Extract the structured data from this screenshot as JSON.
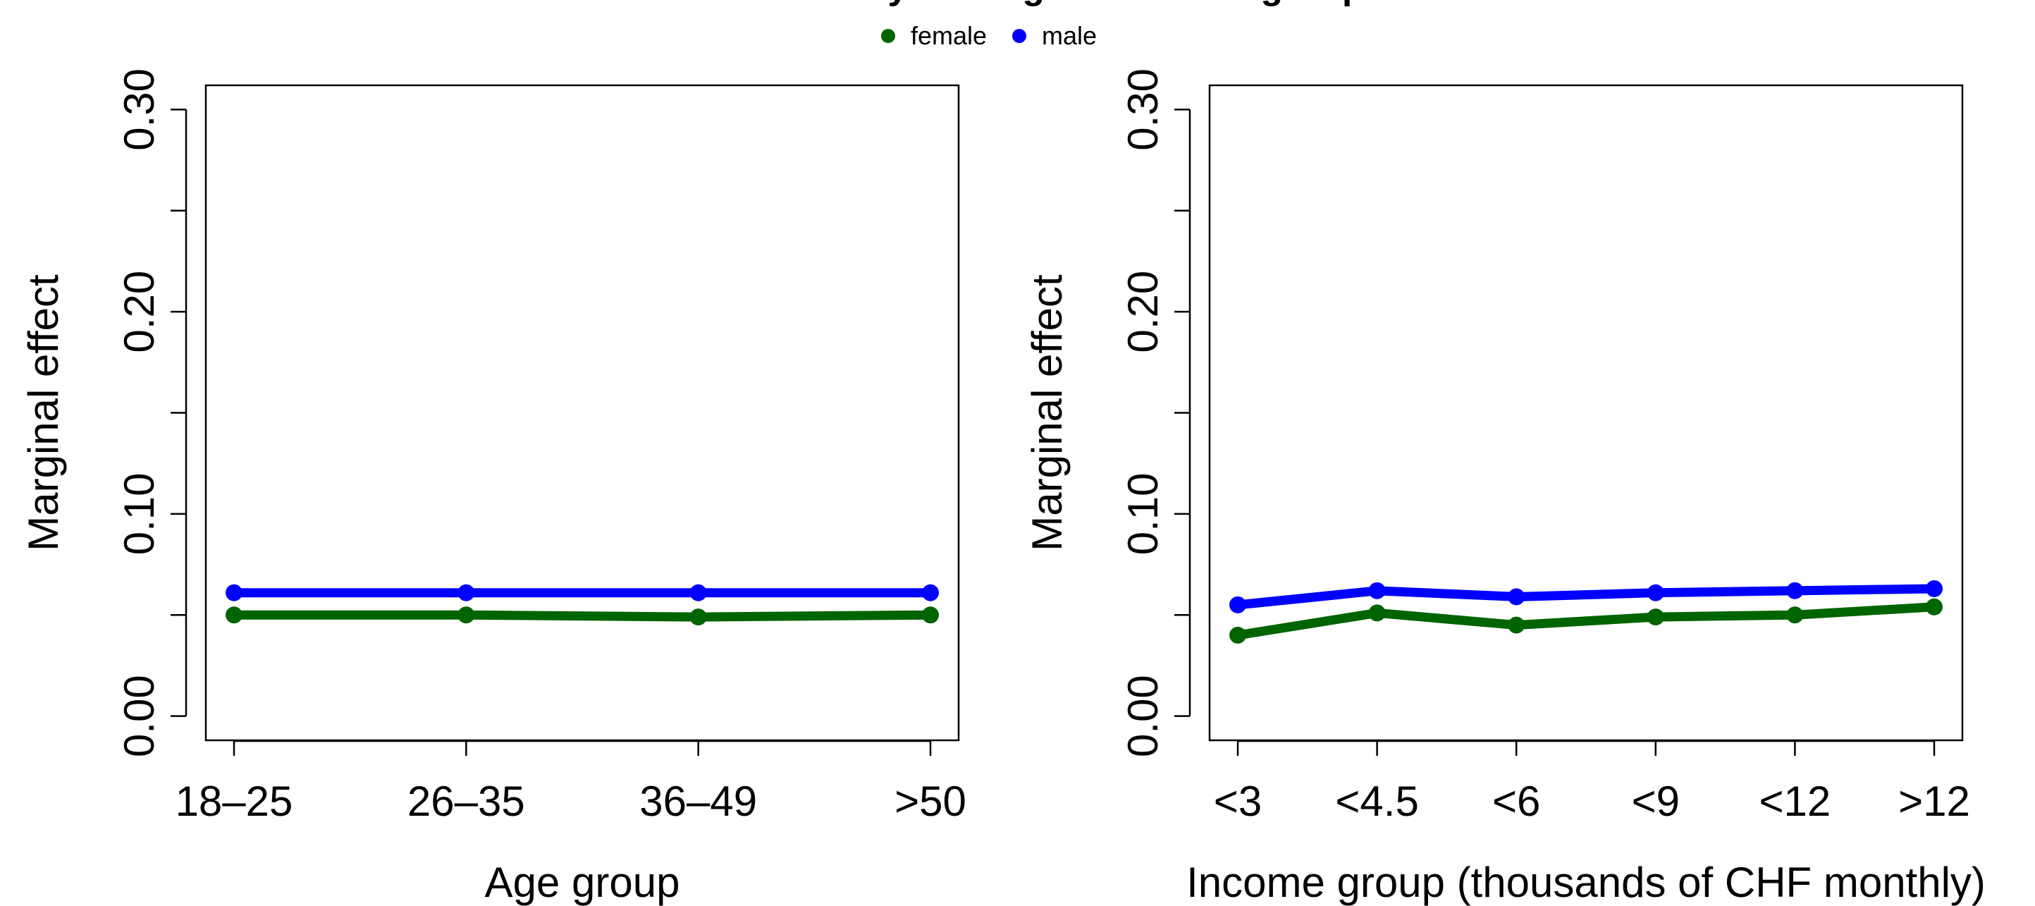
{
  "figure": {
    "title": "does not vary with age or income group"
  },
  "legend": {
    "placement": "top-center",
    "entries": [
      {
        "label": "female",
        "color": "#006400"
      },
      {
        "label": "male",
        "color": "#0000FF"
      }
    ]
  },
  "chart_data": [
    {
      "type": "line",
      "xlabel": "Age group",
      "ylabel": "Marginal effect",
      "categories": [
        "18–25",
        "26–35",
        "36–49",
        ">50"
      ],
      "ylim": [
        0,
        0.3
      ],
      "yticks": [
        0,
        0.05,
        0.1,
        0.15,
        0.2,
        0.25,
        0.3
      ],
      "yticklabels": [
        "0.00",
        "",
        "0.10",
        "",
        "0.20",
        "",
        "0.30"
      ],
      "grid": false,
      "series": [
        {
          "name": "female",
          "color": "#006400",
          "values": [
            0.05,
            0.05,
            0.049,
            0.05
          ]
        },
        {
          "name": "male",
          "color": "#0000FF",
          "values": [
            0.061,
            0.061,
            0.061,
            0.061
          ]
        }
      ]
    },
    {
      "type": "line",
      "xlabel": "Income group (thousands of CHF monthly)",
      "ylabel": "Marginal effect",
      "categories": [
        "<3",
        "<4.5",
        "<6",
        "<9",
        "<12",
        ">12"
      ],
      "ylim": [
        0,
        0.3
      ],
      "yticks": [
        0,
        0.05,
        0.1,
        0.15,
        0.2,
        0.25,
        0.3
      ],
      "yticklabels": [
        "0.00",
        "",
        "0.10",
        "",
        "0.20",
        "",
        "0.30"
      ],
      "grid": false,
      "series": [
        {
          "name": "female",
          "color": "#006400",
          "values": [
            0.04,
            0.051,
            0.045,
            0.049,
            0.05,
            0.054
          ]
        },
        {
          "name": "male",
          "color": "#0000FF",
          "values": [
            0.055,
            0.062,
            0.059,
            0.061,
            0.062,
            0.063
          ]
        }
      ]
    }
  ]
}
